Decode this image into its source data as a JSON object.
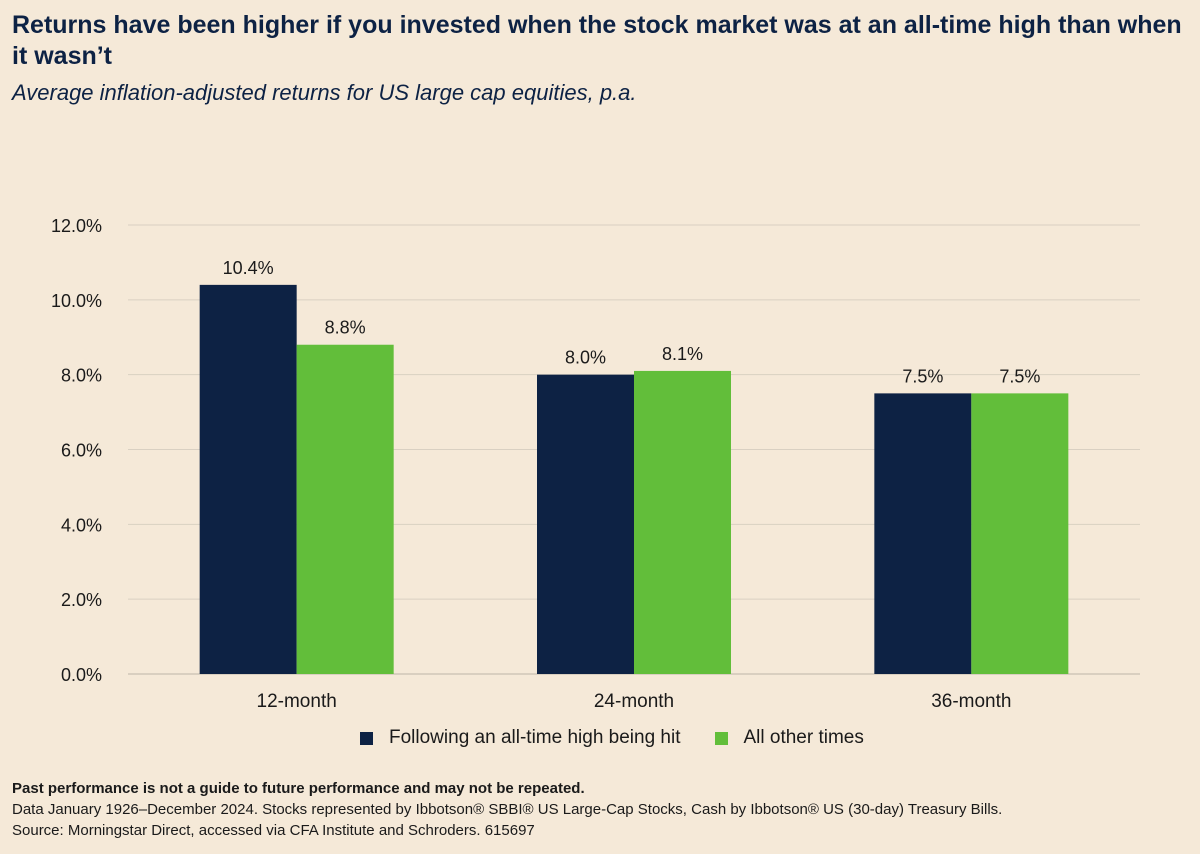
{
  "header": {
    "title": "Returns have been higher if you invested when the stock market was at an all-time high than when it wasn’t",
    "subtitle": "Average inflation-adjusted returns for US large cap equities, p.a."
  },
  "footer": {
    "disclaimer": "Past performance is not a guide to future performance and may not be repeated.",
    "data_note": "Data January 1926–December 2024. Stocks represented by Ibbotson® SBBI® US Large-Cap Stocks, Cash by Ibbotson® US (30-day) Treasury Bills.",
    "source": "Source: Morningstar Direct, accessed via CFA Institute and Schroders. 615697"
  },
  "chart_data": {
    "type": "bar",
    "categories": [
      "12-month",
      "24-month",
      "36-month"
    ],
    "series": [
      {
        "name": "Following an all-time high being hit",
        "color": "#0d2244",
        "values": [
          10.4,
          8.0,
          7.5
        ],
        "labels": [
          "10.4%",
          "8.0%",
          "7.5%"
        ]
      },
      {
        "name": "All other times",
        "color": "#62be3a",
        "values": [
          8.8,
          8.1,
          7.5
        ],
        "labels": [
          "8.8%",
          "8.1%",
          "7.5%"
        ]
      }
    ],
    "yticks": [
      "0.0%",
      "2.0%",
      "4.0%",
      "6.0%",
      "8.0%",
      "10.0%",
      "12.0%"
    ],
    "ylim": [
      0,
      12
    ],
    "grid": true,
    "legend_position": "bottom"
  }
}
